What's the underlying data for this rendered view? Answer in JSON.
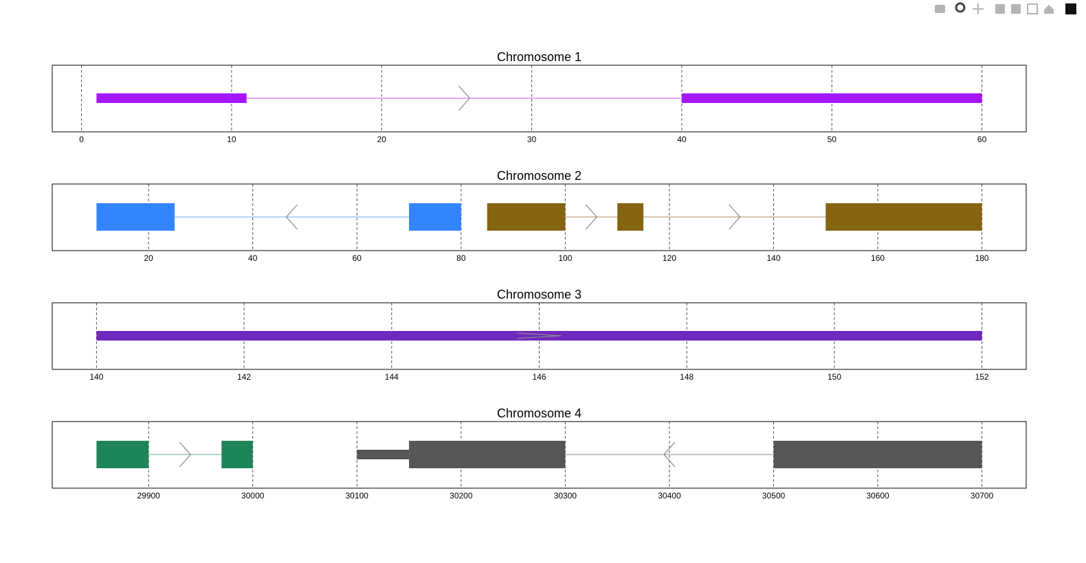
{
  "chart_data": [
    {
      "type": "gene",
      "title": "Chromosome 1",
      "xlim": [
        -1.95,
        62.95
      ],
      "xticks": [
        0,
        10,
        20,
        30,
        40,
        50,
        60
      ],
      "grid": true,
      "transcripts": [
        {
          "color": "#a615fb",
          "strand": "+",
          "exons": [
            {
              "start": 1,
              "end": 11,
              "thick": false
            },
            {
              "start": 40,
              "end": 60,
              "thick": false
            }
          ]
        }
      ]
    },
    {
      "type": "gene",
      "title": "Chromosome 2",
      "xlim": [
        1.5,
        188.5
      ],
      "xticks": [
        20,
        40,
        60,
        80,
        100,
        120,
        140,
        160,
        180
      ],
      "grid": true,
      "transcripts": [
        {
          "color": "#3385ff",
          "strand": "-",
          "exons": [
            {
              "start": 10,
              "end": 25,
              "thick": true
            },
            {
              "start": 70,
              "end": 80,
              "thick": true
            }
          ]
        },
        {
          "color": "#866412",
          "strand": "+",
          "exons": [
            {
              "start": 85,
              "end": 100,
              "thick": true
            },
            {
              "start": 110,
              "end": 115,
              "thick": true
            },
            {
              "start": 150,
              "end": 180,
              "thick": true
            }
          ]
        }
      ]
    },
    {
      "type": "gene",
      "title": "Chromosome 3",
      "xlim": [
        139.4,
        152.6
      ],
      "xticks": [
        140,
        142,
        144,
        146,
        148,
        150,
        152
      ],
      "grid": true,
      "transcripts": [
        {
          "color": "#7129bd",
          "strand": "+",
          "exons": [
            {
              "start": 140,
              "end": 152,
              "thick": false
            }
          ]
        }
      ]
    },
    {
      "type": "gene",
      "title": "Chromosome 4",
      "xlim": [
        29807.5,
        30742.5
      ],
      "xticks": [
        29900,
        30000,
        30100,
        30200,
        30300,
        30400,
        30500,
        30600,
        30700
      ],
      "grid": true,
      "transcripts": [
        {
          "color": "#1e8459",
          "strand": "+",
          "exons": [
            {
              "start": 29850,
              "end": 29900,
              "thick": true
            },
            {
              "start": 29970,
              "end": 30000,
              "thick": true
            }
          ]
        },
        {
          "color": "#565656",
          "strand": "-",
          "exons": [
            {
              "start": 30100,
              "end": 30150,
              "thick": false
            },
            {
              "start": 30150,
              "end": 30300,
              "thick": true
            },
            {
              "start": 30500,
              "end": 30700,
              "thick": true
            }
          ]
        }
      ]
    }
  ]
}
